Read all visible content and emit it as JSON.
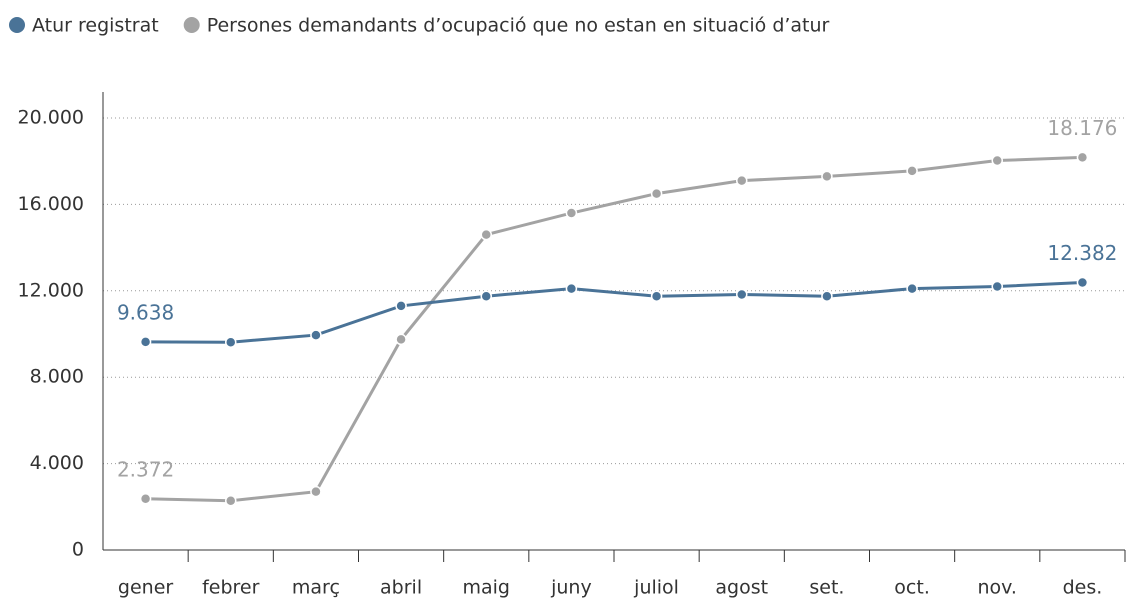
{
  "chart_data": {
    "type": "line",
    "categories": [
      "gener",
      "febrer",
      "març",
      "abril",
      "maig",
      "juny",
      "juliol",
      "agost",
      "set.",
      "oct.",
      "nov.",
      "des."
    ],
    "series": [
      {
        "name": "Atur registrat",
        "color": "#4a7397",
        "values": [
          9638,
          9620,
          9950,
          11300,
          11750,
          12100,
          11750,
          11830,
          11750,
          12100,
          12200,
          12382
        ],
        "value_labels": [
          "9.638",
          null,
          null,
          null,
          null,
          null,
          null,
          null,
          null,
          null,
          null,
          "12.382"
        ]
      },
      {
        "name": "Persones demandants d’ocupació que no estan en situació d’atur",
        "color": "#a3a3a3",
        "values": [
          2372,
          2280,
          2700,
          9750,
          14600,
          15600,
          16500,
          17100,
          17300,
          17550,
          18030,
          18176
        ],
        "value_labels": [
          "2.372",
          null,
          null,
          null,
          null,
          null,
          null,
          null,
          null,
          null,
          null,
          "18.176"
        ]
      }
    ],
    "ylim": [
      0,
      20000
    ],
    "yticks": [
      0,
      {
        "value": 4000,
        "label": "4.000"
      },
      {
        "value": 8000,
        "label": "8.000"
      },
      {
        "value": 12000,
        "label": "12.000"
      },
      {
        "value": 16000,
        "label": "16.000"
      },
      {
        "value": 20000,
        "label": "20.000"
      }
    ],
    "grid": true,
    "legend": "top-left"
  }
}
